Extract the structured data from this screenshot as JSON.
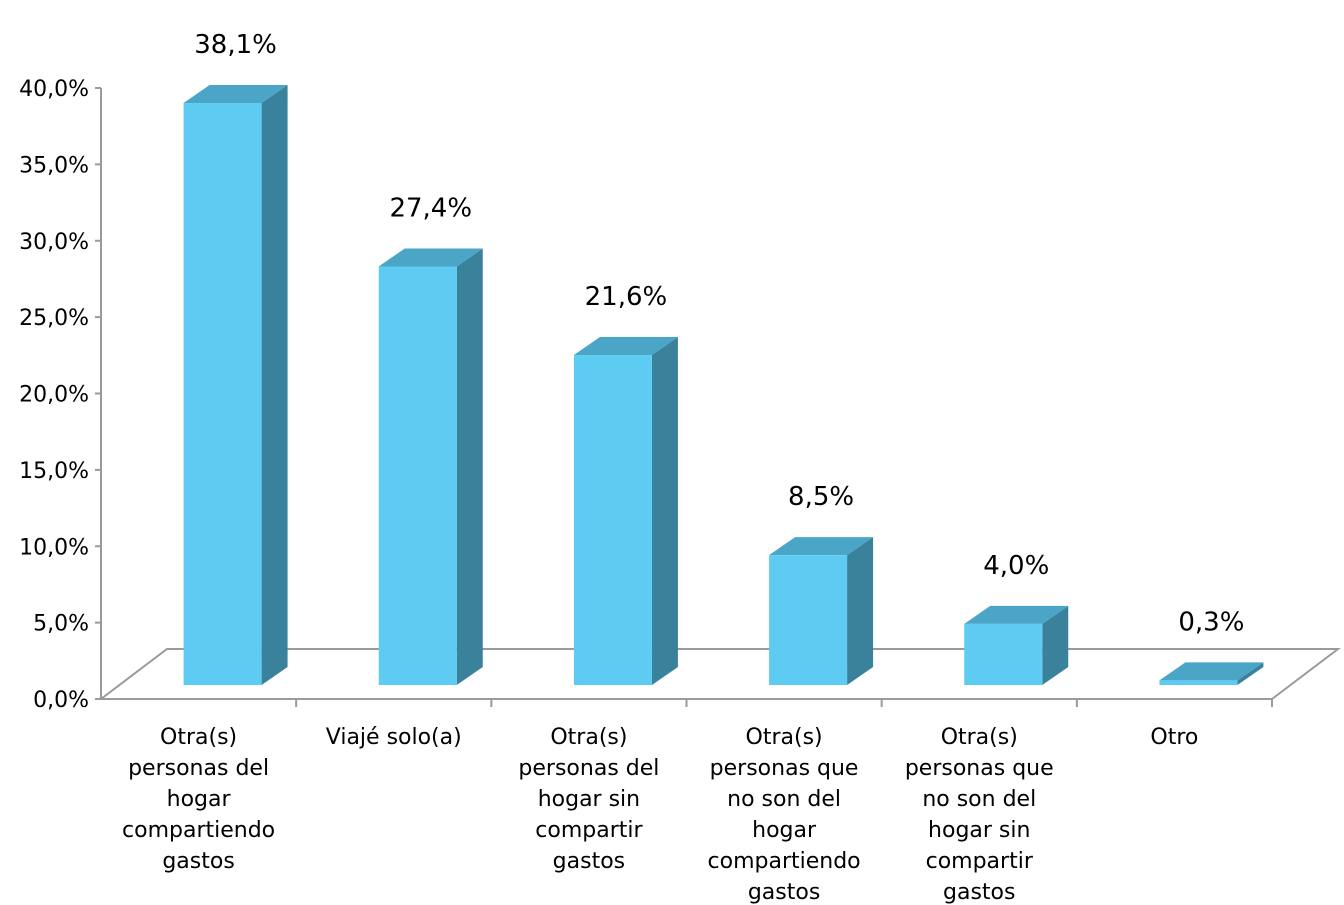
{
  "chart_data": {
    "type": "bar",
    "three_d": true,
    "categories": [
      "Otra(s) personas del hogar compartiendo gastos",
      "Viajé solo(a)",
      "Otra(s) personas del hogar sin compartir gastos",
      "Otra(s) personas que no son del hogar compartiendo gastos",
      "Otra(s) personas que no son del hogar sin compartir gastos",
      "Otro"
    ],
    "category_lines": [
      [
        "Otra(s)",
        "personas del",
        "hogar",
        "compartiendo",
        "gastos"
      ],
      [
        "Viajé solo(a)"
      ],
      [
        "Otra(s)",
        "personas del",
        "hogar sin",
        "compartir",
        "gastos"
      ],
      [
        "Otra(s)",
        "personas que",
        "no son del",
        "hogar",
        "compartiendo",
        "gastos"
      ],
      [
        "Otra(s)",
        "personas que",
        "no son del",
        "hogar sin",
        "compartir",
        "gastos"
      ],
      [
        "Otro"
      ]
    ],
    "values": [
      38.1,
      27.4,
      21.6,
      8.5,
      4.0,
      0.3
    ],
    "data_labels": [
      "38,1%",
      "27,4%",
      "21,6%",
      "8,5%",
      "4,0%",
      "0,3%"
    ],
    "yticks": [
      0,
      5,
      10,
      15,
      20,
      25,
      30,
      35,
      40
    ],
    "ytick_labels": [
      "0,0%",
      "5,0%",
      "10,0%",
      "15,0%",
      "20,0%",
      "25,0%",
      "30,0%",
      "35,0%",
      "40,0%"
    ],
    "ylim": [
      0,
      40
    ],
    "title": "",
    "xlabel": "",
    "ylabel": "",
    "grid": false,
    "legend": "none",
    "colors": {
      "bar_front": "#5ecbf3",
      "bar_top": "#4aa5c7",
      "bar_side": "#3a819c",
      "axis": "#9a9a9a"
    }
  }
}
